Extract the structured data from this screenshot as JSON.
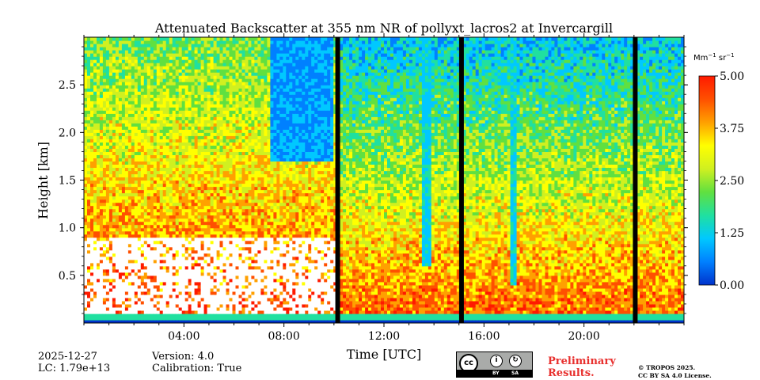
{
  "chart_data": {
    "type": "heatmap",
    "title": "Attenuated Backscatter at 355 nm NR of pollyxt_lacros2 at Invercargill",
    "xlabel": "Time [UTC]",
    "ylabel": "Height [km]",
    "x_ticks": [
      "04:00",
      "08:00",
      "12:00",
      "16:00",
      "20:00"
    ],
    "x_tick_values": [
      4,
      8,
      12,
      16,
      20
    ],
    "xlim": [
      0,
      24
    ],
    "y_ticks": [
      "0.5",
      "1.0",
      "1.5",
      "2.0",
      "2.5"
    ],
    "y_tick_values": [
      0.5,
      1.0,
      1.5,
      2.0,
      2.5
    ],
    "ylim": [
      0.0,
      3.0
    ],
    "colorbar": {
      "label_base": "Mm",
      "label_exp1": "−1",
      "label_unit": " sr",
      "label_exp2": "−1",
      "ticks": [
        "0.00",
        "1.25",
        "2.50",
        "3.75",
        "5.00"
      ],
      "tick_values": [
        0.0,
        1.25,
        2.5,
        3.75,
        5.0
      ],
      "range": [
        0.0,
        5.0
      ],
      "colors": [
        "#0033cc",
        "#0080ff",
        "#00c8ff",
        "#20e0a0",
        "#60e040",
        "#d0f020",
        "#ffff00",
        "#ffa000",
        "#ff5000",
        "#ff1a00"
      ]
    },
    "data_gaps_hours": [
      10.15,
      15.1,
      22.05
    ]
  },
  "meta": {
    "date": "2025-12-27",
    "lc": "LC: 1.79e+13",
    "version": "Version: 4.0",
    "calibration": "Calibration: True"
  },
  "license": {
    "cc_label": "cc",
    "by_label": "BY",
    "sa_label": "SA",
    "preliminary_line1": "Preliminary",
    "preliminary_line2": "Results.",
    "copyright_line1": "© TROPOS 2025.",
    "copyright_line2": "CC BY SA 4.0 License."
  }
}
